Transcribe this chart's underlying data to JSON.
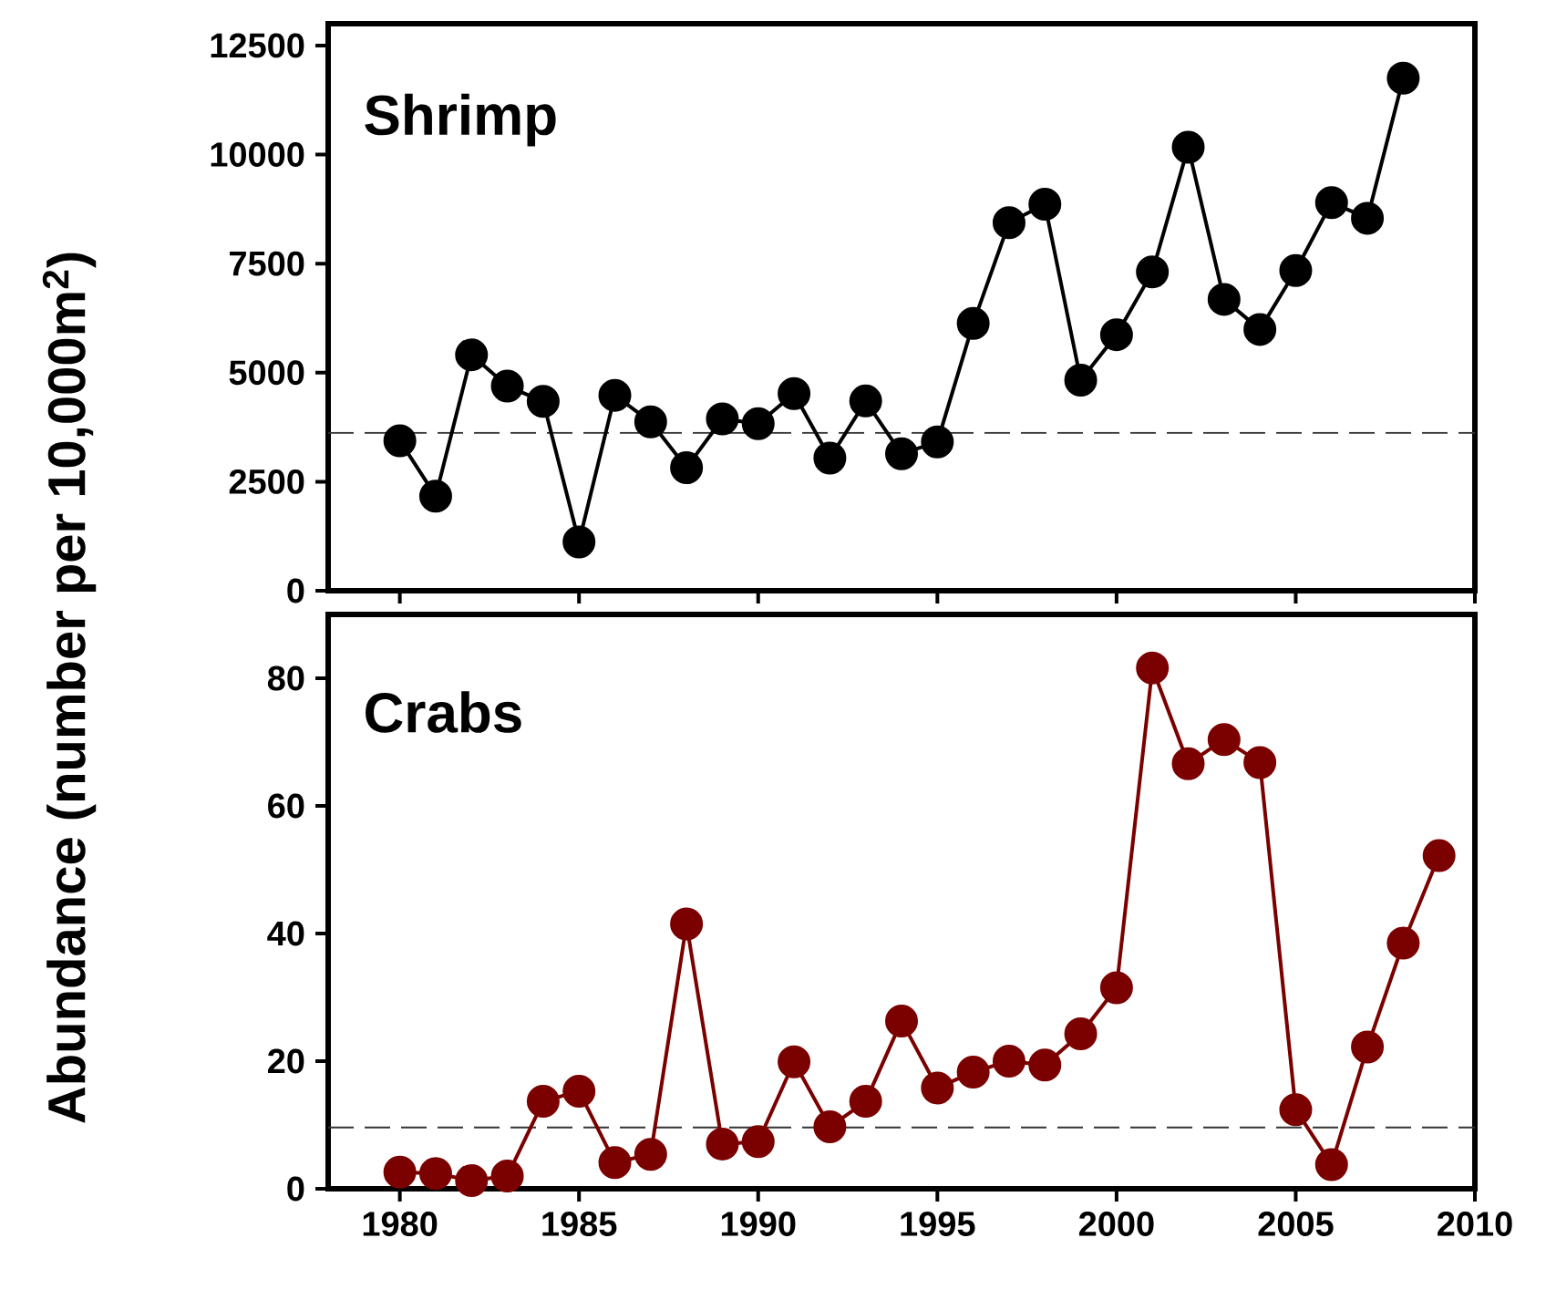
{
  "chart_data": [
    {
      "type": "line",
      "title": "Shrimp",
      "ylabel": "Abundance (number per 10,000m$^{2}$)",
      "x": [
        1980,
        1981,
        1982,
        1983,
        1984,
        1985,
        1986,
        1987,
        1988,
        1989,
        1990,
        1991,
        1992,
        1993,
        1994,
        1995,
        1996,
        1997,
        1998,
        1999,
        2000,
        2001,
        2002,
        2003,
        2004,
        2005,
        2006,
        2007,
        2008
      ],
      "series": [
        {
          "color": "#000000",
          "values": [
            3440,
            2170,
            5410,
            4690,
            4340,
            1120,
            4480,
            3870,
            2820,
            3940,
            3830,
            4520,
            3040,
            4350,
            3140,
            3410,
            6130,
            8440,
            8860,
            4830,
            5870,
            7310,
            10170,
            6680,
            5990,
            7340,
            8900,
            8540,
            11750
          ]
        }
      ],
      "xlim": [
        1978,
        2010
      ],
      "xticks": [
        1980,
        1985,
        1990,
        1995,
        2000,
        2005,
        2010
      ],
      "ylim": [
        0,
        13000
      ],
      "yticks": [
        0,
        2500,
        5000,
        7500,
        10000,
        12500
      ],
      "ref_lines": [
        {
          "axis": "y",
          "value": 3620,
          "line_style": "dashed"
        }
      ],
      "marker": "circle",
      "line_style": "solid",
      "tick_labels": "y"
    },
    {
      "type": "line",
      "title": "Crabs",
      "x": [
        1980,
        1981,
        1982,
        1983,
        1984,
        1985,
        1986,
        1987,
        1988,
        1989,
        1990,
        1991,
        1992,
        1993,
        1994,
        1995,
        1996,
        1997,
        1998,
        1999,
        2000,
        2001,
        2002,
        2003,
        2004,
        2005,
        2006,
        2007,
        2008,
        2009
      ],
      "series": [
        {
          "color": "#7b0000",
          "values": [
            2.6,
            2.4,
            1.3,
            2.0,
            13.7,
            15.3,
            4.1,
            5.4,
            41.5,
            7.0,
            7.4,
            19.9,
            9.7,
            13.7,
            26.3,
            15.8,
            18.3,
            20.0,
            19.4,
            24.3,
            31.5,
            81.6,
            66.6,
            70.4,
            66.8,
            12.4,
            3.8,
            22.2,
            38.5,
            52.2
          ]
        }
      ],
      "xlim": [
        1978,
        2010
      ],
      "xticks": [
        1980,
        1985,
        1990,
        1995,
        2000,
        2005,
        2010
      ],
      "ylim": [
        0,
        90
      ],
      "yticks": [
        0,
        20,
        40,
        60,
        80
      ],
      "ref_lines": [
        {
          "axis": "y",
          "value": 9.6,
          "line_style": "dashed"
        }
      ],
      "marker": "circle",
      "line_style": "solid"
    }
  ]
}
